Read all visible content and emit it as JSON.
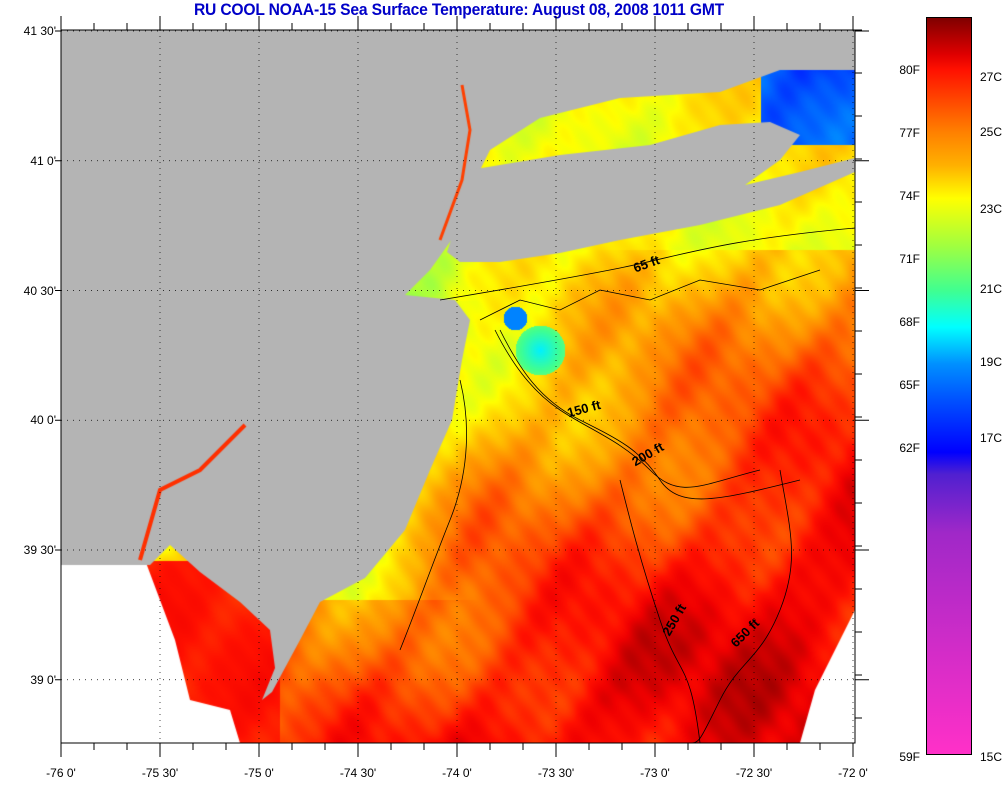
{
  "title": "RU COOL  NOAA-15  Sea Surface Temperature:  August 08, 2008 1011 GMT",
  "axes": {
    "lat_ticks": [
      {
        "value": 41.5,
        "label": "41 30'"
      },
      {
        "value": 41.0,
        "label": "41 0'"
      },
      {
        "value": 40.5,
        "label": "40 30'"
      },
      {
        "value": 40.0,
        "label": "40 0'"
      },
      {
        "value": 39.5,
        "label": "39 30'"
      },
      {
        "value": 39.0,
        "label": "39 0'"
      }
    ],
    "lon_ticks": [
      {
        "value": -76.0,
        "label": "-76 0'"
      },
      {
        "value": -75.5,
        "label": "-75 30'"
      },
      {
        "value": -75.0,
        "label": "-75 0'"
      },
      {
        "value": -74.5,
        "label": "-74 30'"
      },
      {
        "value": -74.0,
        "label": "-74 0'"
      },
      {
        "value": -73.5,
        "label": "-73 30'"
      },
      {
        "value": -73.0,
        "label": "-73 0'"
      },
      {
        "value": -72.5,
        "label": "-72 30'"
      },
      {
        "value": -72.0,
        "label": "-72 0'"
      }
    ]
  },
  "colorbar": {
    "fahrenheit": [
      "80F",
      "77F",
      "74F",
      "71F",
      "68F",
      "65F",
      "62F",
      "59F"
    ],
    "celsius": [
      "27C",
      "25C",
      "23C",
      "21C",
      "19C",
      "17C",
      "15C"
    ]
  },
  "contours": [
    "65 ft",
    "150 ft",
    "200 ft",
    "250 ft",
    "650 ft"
  ],
  "colors": {
    "land": "#b4b4b4",
    "title": "#0000c8",
    "nodata": "#ffffff"
  }
}
